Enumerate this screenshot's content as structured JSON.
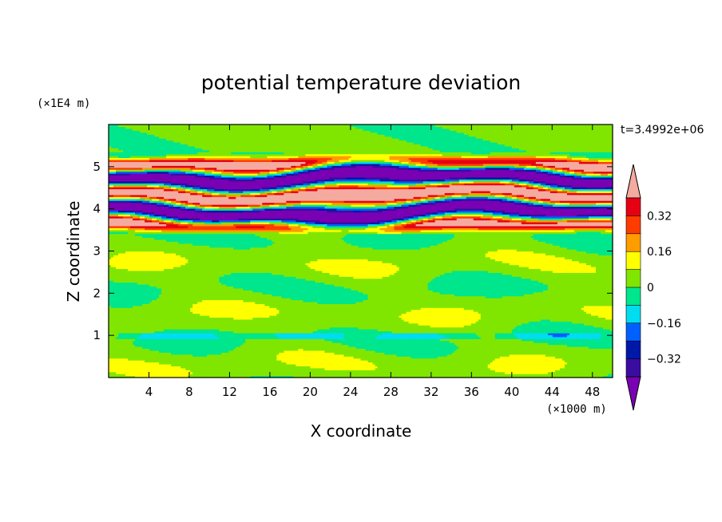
{
  "chart_data": {
    "type": "heatmap",
    "title": "potential temperature deviation",
    "xlabel": "X coordinate",
    "ylabel": "Z coordinate",
    "x_unit": "(×1000 m)",
    "y_unit": "(×1E4 m)",
    "time_label": "t=3.4992e+06",
    "x_range": [
      0,
      50
    ],
    "y_range": [
      0,
      6
    ],
    "x_ticks": [
      "4",
      "8",
      "12",
      "16",
      "20",
      "24",
      "28",
      "32",
      "36",
      "40",
      "44",
      "48"
    ],
    "x_tick_values": [
      4,
      8,
      12,
      16,
      20,
      24,
      28,
      32,
      36,
      40,
      44,
      48
    ],
    "y_ticks": [
      "1",
      "2",
      "3",
      "4",
      "5"
    ],
    "y_tick_values": [
      1,
      2,
      3,
      4,
      5
    ],
    "colorbar": {
      "labels": [
        "0.32",
        "0.16",
        "0",
        "−0.16",
        "−0.32"
      ],
      "label_values": [
        0.32,
        0.16,
        0,
        -0.16,
        -0.32
      ],
      "levels": [
        -0.4,
        -0.32,
        -0.24,
        -0.16,
        -0.08,
        0,
        0.08,
        0.16,
        0.24,
        0.32,
        0.4
      ],
      "colors": [
        "#7a00b4",
        "#3a0da0",
        "#0018a8",
        "#0060ff",
        "#00dcf0",
        "#00e68c",
        "#80e600",
        "#ffff00",
        "#ff9c00",
        "#ff3c00",
        "#e60014",
        "#f5aaa0"
      ],
      "extend": "both"
    }
  }
}
